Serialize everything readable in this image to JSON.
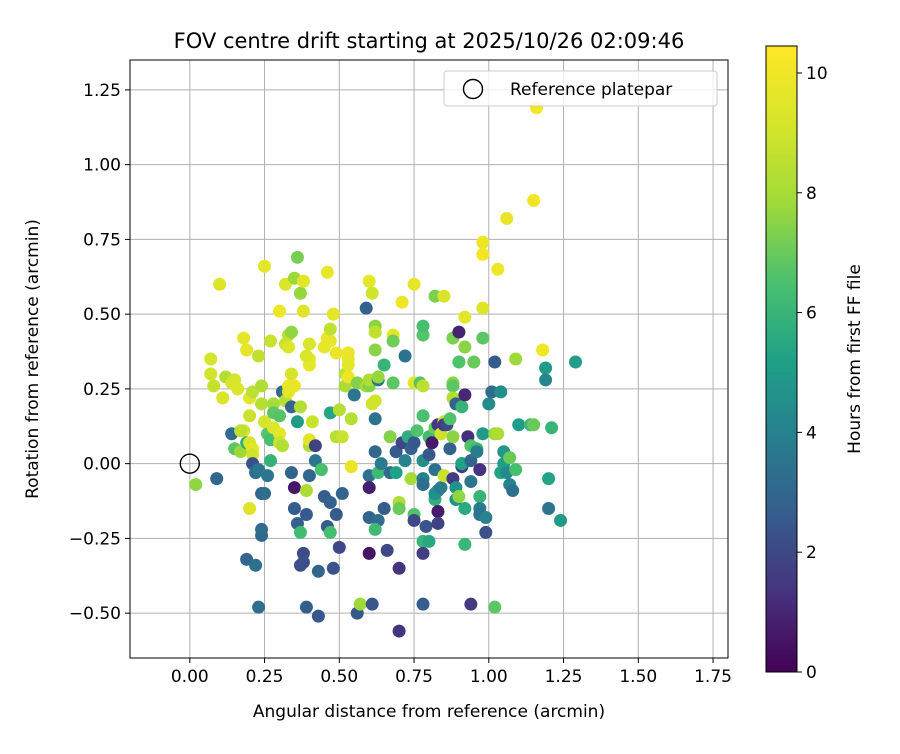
{
  "chart_data": {
    "type": "scatter",
    "title": "FOV centre drift starting at 2025/10/26 02:09:46",
    "xlabel": "Angular distance from reference (arcmin)",
    "ylabel": "Rotation from reference (arcmin)",
    "xlim": [
      -0.2,
      1.8
    ],
    "ylim": [
      -0.65,
      1.35
    ],
    "xticks": [
      0.0,
      0.25,
      0.5,
      0.75,
      1.0,
      1.25,
      1.5,
      1.75
    ],
    "xtick_labels": [
      "0.00",
      "0.25",
      "0.50",
      "0.75",
      "1.00",
      "1.25",
      "1.50",
      "1.75"
    ],
    "yticks": [
      -0.5,
      -0.25,
      0.0,
      0.25,
      0.5,
      0.75,
      1.0,
      1.25
    ],
    "ytick_labels": [
      "−0.50",
      "−0.25",
      "0.00",
      "0.25",
      "0.50",
      "0.75",
      "1.00",
      "1.25"
    ],
    "grid": true,
    "legend": {
      "position": "top-right",
      "entries": [
        "Reference platepar"
      ]
    },
    "reference_point": {
      "x": 0.0,
      "y": 0.0,
      "label": "Reference platepar"
    },
    "colorbar": {
      "label": "Hours from first FF file",
      "min": 0,
      "max": 10.45,
      "ticks": [
        0,
        2,
        4,
        6,
        8,
        10
      ],
      "tick_labels": [
        "0",
        "2",
        "4",
        "6",
        "8",
        "10"
      ],
      "colormap": "viridis"
    },
    "point_fields": [
      "x",
      "y",
      "hours"
    ],
    "points": [
      [
        0.02,
        -0.07,
        7.6
      ],
      [
        0.09,
        -0.05,
        3.0
      ],
      [
        0.12,
        0.29,
        8.3
      ],
      [
        0.1,
        0.6,
        9.4
      ],
      [
        0.07,
        0.35,
        9.1
      ],
      [
        0.07,
        0.3,
        9.0
      ],
      [
        0.08,
        0.26,
        8.7
      ],
      [
        0.11,
        0.22,
        9.3
      ],
      [
        0.14,
        0.27,
        9.2
      ],
      [
        0.15,
        0.28,
        9.1
      ],
      [
        0.16,
        0.25,
        9.3
      ],
      [
        0.14,
        0.1,
        3.2
      ],
      [
        0.15,
        0.05,
        6.8
      ],
      [
        0.17,
        0.04,
        7.8
      ],
      [
        0.18,
        0.11,
        9.0
      ],
      [
        0.19,
        0.07,
        5.8
      ],
      [
        0.17,
        0.11,
        8.6
      ],
      [
        0.19,
        0.38,
        9.6
      ],
      [
        0.18,
        0.42,
        9.6
      ],
      [
        0.2,
        0.22,
        9.5
      ],
      [
        0.21,
        0.24,
        8.5
      ],
      [
        0.2,
        0.16,
        8.8
      ],
      [
        0.2,
        0.07,
        9.2
      ],
      [
        0.21,
        0.05,
        9.6
      ],
      [
        0.21,
        0.03,
        9.0
      ],
      [
        0.21,
        0.0,
        2.3
      ],
      [
        0.22,
        -0.03,
        3.3
      ],
      [
        0.23,
        -0.02,
        3.6
      ],
      [
        0.2,
        -0.15,
        9.4
      ],
      [
        0.19,
        -0.32,
        3.0
      ],
      [
        0.22,
        -0.34,
        3.4
      ],
      [
        0.24,
        -0.24,
        3.1
      ],
      [
        0.24,
        -0.22,
        3.2
      ],
      [
        0.23,
        -0.48,
        3.3
      ],
      [
        0.24,
        -0.1,
        3.0
      ],
      [
        0.25,
        -0.1,
        3.3
      ],
      [
        0.26,
        -0.04,
        3.6
      ],
      [
        0.27,
        0.01,
        5.9
      ],
      [
        0.26,
        0.1,
        6.7
      ],
      [
        0.27,
        0.08,
        6.4
      ],
      [
        0.25,
        0.14,
        9.1
      ],
      [
        0.24,
        0.2,
        8.4
      ],
      [
        0.24,
        0.26,
        8.2
      ],
      [
        0.23,
        0.36,
        8.6
      ],
      [
        0.25,
        0.66,
        9.6
      ],
      [
        0.27,
        0.41,
        8.8
      ],
      [
        0.28,
        0.2,
        8.0
      ],
      [
        0.28,
        0.17,
        6.8
      ],
      [
        0.28,
        0.12,
        9.3
      ],
      [
        0.3,
        0.1,
        9.6
      ],
      [
        0.3,
        0.51,
        9.9
      ],
      [
        0.3,
        0.16,
        6.7
      ],
      [
        0.3,
        0.07,
        8.9
      ],
      [
        0.31,
        0.06,
        8.3
      ],
      [
        0.31,
        0.24,
        2.8
      ],
      [
        0.32,
        0.24,
        3.5
      ],
      [
        0.32,
        0.21,
        8.4
      ],
      [
        0.33,
        0.26,
        9.9
      ],
      [
        0.33,
        0.24,
        9.6
      ],
      [
        0.33,
        0.43,
        8.4
      ],
      [
        0.32,
        0.4,
        8.8
      ],
      [
        0.32,
        0.6,
        9.3
      ],
      [
        0.33,
        0.39,
        9.3
      ],
      [
        0.34,
        0.3,
        9.1
      ],
      [
        0.34,
        0.44,
        7.6
      ],
      [
        0.35,
        0.62,
        7.8
      ],
      [
        0.36,
        0.69,
        7.2
      ],
      [
        0.37,
        0.57,
        7.7
      ],
      [
        0.38,
        0.61,
        9.5
      ],
      [
        0.38,
        0.51,
        9.4
      ],
      [
        0.35,
        0.26,
        9.8
      ],
      [
        0.34,
        0.19,
        3.0
      ],
      [
        0.36,
        0.14,
        5.0
      ],
      [
        0.37,
        0.19,
        8.3
      ],
      [
        0.34,
        -0.03,
        2.9
      ],
      [
        0.35,
        -0.08,
        0.6
      ],
      [
        0.35,
        -0.15,
        2.6
      ],
      [
        0.36,
        -0.2,
        2.8
      ],
      [
        0.37,
        -0.23,
        6.3
      ],
      [
        0.37,
        -0.34,
        2.2
      ],
      [
        0.38,
        -0.3,
        2.1
      ],
      [
        0.38,
        -0.33,
        2.2
      ],
      [
        0.39,
        -0.17,
        2.6
      ],
      [
        0.39,
        -0.09,
        8.1
      ],
      [
        0.39,
        -0.48,
        2.7
      ],
      [
        0.4,
        -0.04,
        3.0
      ],
      [
        0.4,
        0.06,
        8.2
      ],
      [
        0.4,
        0.08,
        9.5
      ],
      [
        0.4,
        0.33,
        9.7
      ],
      [
        0.4,
        0.35,
        9.6
      ],
      [
        0.39,
        0.36,
        9.2
      ],
      [
        0.4,
        0.4,
        9.2
      ],
      [
        0.41,
        0.14,
        8.8
      ],
      [
        0.42,
        0.06,
        1.8
      ],
      [
        0.42,
        0.01,
        3.6
      ],
      [
        0.43,
        -0.36,
        3.0
      ],
      [
        0.43,
        -0.51,
        2.5
      ],
      [
        0.44,
        -0.02,
        6.5
      ],
      [
        0.45,
        -0.11,
        2.7
      ],
      [
        0.45,
        0.39,
        9.7
      ],
      [
        0.46,
        0.42,
        9.9
      ],
      [
        0.46,
        0.64,
        9.7
      ],
      [
        0.47,
        0.41,
        9.7
      ],
      [
        0.48,
        0.5,
        9.6
      ],
      [
        0.47,
        0.45,
        8.6
      ],
      [
        0.47,
        0.17,
        5.4
      ],
      [
        0.46,
        -0.21,
        2.6
      ],
      [
        0.47,
        -0.13,
        2.8
      ],
      [
        0.47,
        -0.23,
        6.4
      ],
      [
        0.48,
        -0.35,
        2.4
      ],
      [
        0.49,
        -0.17,
        2.6
      ],
      [
        0.49,
        0.09,
        8.4
      ],
      [
        0.49,
        0.37,
        9.8
      ],
      [
        0.5,
        0.18,
        8.3
      ],
      [
        0.51,
        0.09,
        8.8
      ],
      [
        0.5,
        -0.28,
        2.0
      ],
      [
        0.51,
        -0.1,
        2.9
      ],
      [
        0.52,
        0.26,
        8.1
      ],
      [
        0.52,
        0.3,
        8.5
      ],
      [
        0.53,
        0.29,
        9.9
      ],
      [
        0.54,
        0.15,
        8.4
      ],
      [
        0.53,
        0.35,
        9.6
      ],
      [
        0.53,
        0.33,
        9.6
      ],
      [
        0.53,
        0.37,
        9.8
      ],
      [
        0.54,
        -0.01,
        9.8
      ],
      [
        0.55,
        0.23,
        3.6
      ],
      [
        0.56,
        0.27,
        7.4
      ],
      [
        0.56,
        -0.5,
        2.5
      ],
      [
        0.57,
        -0.47,
        7.8
      ],
      [
        0.59,
        0.52,
        2.8
      ],
      [
        0.59,
        0.26,
        8.0
      ],
      [
        0.6,
        0.61,
        9.6
      ],
      [
        0.61,
        0.57,
        9.0
      ],
      [
        0.6,
        0.26,
        7.4
      ],
      [
        0.6,
        0.28,
        8.2
      ],
      [
        0.6,
        -0.04,
        3.4
      ],
      [
        0.6,
        -0.08,
        0.8
      ],
      [
        0.6,
        -0.18,
        2.9
      ],
      [
        0.6,
        -0.3,
        0.5
      ],
      [
        0.61,
        -0.47,
        2.4
      ],
      [
        0.62,
        0.46,
        7.5
      ],
      [
        0.62,
        0.44,
        8.6
      ],
      [
        0.62,
        0.38,
        7.5
      ],
      [
        0.63,
        0.28,
        3.6
      ],
      [
        0.63,
        0.29,
        7.7
      ],
      [
        0.61,
        0.2,
        9.0
      ],
      [
        0.62,
        0.21,
        9.0
      ],
      [
        0.62,
        0.15,
        3.5
      ],
      [
        0.62,
        0.04,
        3.1
      ],
      [
        0.63,
        -0.03,
        6.2
      ],
      [
        0.63,
        -0.19,
        3.2
      ],
      [
        0.62,
        -0.22,
        6.2
      ],
      [
        0.64,
        0.0,
        3.8
      ],
      [
        0.65,
        -0.15,
        2.6
      ],
      [
        0.65,
        0.33,
        6.0
      ],
      [
        0.66,
        -0.29,
        2.0
      ],
      [
        0.67,
        -0.03,
        3.2
      ],
      [
        0.67,
        0.09,
        7.4
      ],
      [
        0.68,
        0.43,
        9.5
      ],
      [
        0.68,
        0.41,
        7.1
      ],
      [
        0.68,
        0.27,
        6.8
      ],
      [
        0.69,
        0.04,
        2.6
      ],
      [
        0.69,
        -0.03,
        5.2
      ],
      [
        0.7,
        -0.13,
        8.2
      ],
      [
        0.7,
        -0.15,
        7.0
      ],
      [
        0.7,
        -0.35,
        1.4
      ],
      [
        0.7,
        -0.56,
        1.4
      ],
      [
        0.71,
        0.54,
        9.9
      ],
      [
        0.71,
        0.07,
        1.9
      ],
      [
        0.72,
        0.36,
        3.5
      ],
      [
        0.72,
        0.01,
        4.0
      ],
      [
        0.73,
        0.09,
        5.7
      ],
      [
        0.74,
        0.05,
        2.8
      ],
      [
        0.74,
        -0.05,
        8.0
      ],
      [
        0.75,
        -0.17,
        6.6
      ],
      [
        0.75,
        -0.19,
        2.0
      ],
      [
        0.75,
        0.6,
        9.7
      ],
      [
        0.75,
        0.27,
        9.5
      ],
      [
        0.75,
        0.07,
        2.5
      ],
      [
        0.76,
        0.11,
        6.6
      ],
      [
        0.77,
        0.27,
        6.7
      ],
      [
        0.78,
        0.16,
        6.5
      ],
      [
        0.78,
        0.43,
        6.7
      ],
      [
        0.78,
        0.46,
        6.4
      ],
      [
        0.78,
        0.26,
        8.5
      ],
      [
        0.78,
        0.01,
        4.5
      ],
      [
        0.78,
        -0.05,
        4.0
      ],
      [
        0.78,
        -0.07,
        3.3
      ],
      [
        0.78,
        -0.26,
        6.0
      ],
      [
        0.78,
        -0.47,
        2.6
      ],
      [
        0.78,
        -0.3,
        1.7
      ],
      [
        0.79,
        -0.21,
        2.4
      ],
      [
        0.8,
        -0.26,
        5.5
      ],
      [
        0.8,
        0.09,
        6.3
      ],
      [
        0.8,
        0.03,
        2.5
      ],
      [
        0.81,
        0.07,
        0.7
      ],
      [
        0.82,
        0.12,
        7.0
      ],
      [
        0.82,
        -0.02,
        3.4
      ],
      [
        0.82,
        -0.12,
        5.8
      ],
      [
        0.83,
        -0.09,
        3.1
      ],
      [
        0.82,
        -0.1,
        4.5
      ],
      [
        0.83,
        -0.16,
        0.7
      ],
      [
        0.83,
        -0.2,
        1.8
      ],
      [
        0.82,
        0.56,
        7.3
      ],
      [
        0.83,
        0.13,
        1.5
      ],
      [
        0.84,
        0.1,
        8.9
      ],
      [
        0.84,
        -0.08,
        3.8
      ],
      [
        0.85,
        0.14,
        8.9
      ],
      [
        0.85,
        0.13,
        1.6
      ],
      [
        0.85,
        0.56,
        9.2
      ],
      [
        0.85,
        -0.04,
        8.8
      ],
      [
        0.86,
        0.13,
        2.0
      ],
      [
        0.87,
        0.15,
        6.6
      ],
      [
        0.87,
        0.05,
        2.8
      ],
      [
        0.88,
        0.09,
        7.5
      ],
      [
        0.88,
        -0.05,
        1.6
      ],
      [
        0.88,
        0.27,
        7.5
      ],
      [
        0.88,
        0.42,
        7.3
      ],
      [
        0.88,
        0.26,
        6.8
      ],
      [
        0.88,
        0.22,
        8.3
      ],
      [
        0.89,
        0.2,
        2.8
      ],
      [
        0.89,
        -0.08,
        4.7
      ],
      [
        0.89,
        -0.12,
        4.7
      ],
      [
        0.9,
        -0.11,
        7.6
      ],
      [
        0.9,
        0.44,
        0.9
      ],
      [
        0.9,
        0.34,
        6.6
      ],
      [
        0.91,
        0.19,
        6.0
      ],
      [
        0.91,
        0.0,
        3.5
      ],
      [
        0.91,
        -0.01,
        1.6
      ],
      [
        0.91,
        0.0,
        5.3
      ],
      [
        0.92,
        0.23,
        1.0
      ],
      [
        0.92,
        0.49,
        9.5
      ],
      [
        0.92,
        0.39,
        7.5
      ],
      [
        0.92,
        -0.15,
        5.6
      ],
      [
        0.92,
        -0.27,
        6.1
      ],
      [
        0.93,
        0.09,
        1.2
      ],
      [
        0.94,
        -0.47,
        1.6
      ],
      [
        0.94,
        0.01,
        3.0
      ],
      [
        0.94,
        -0.06,
        3.6
      ],
      [
        0.94,
        0.06,
        6.6
      ],
      [
        0.95,
        0.34,
        7.0
      ],
      [
        0.96,
        0.05,
        6.1
      ],
      [
        0.96,
        0.04,
        3.8
      ],
      [
        0.97,
        -0.02,
        1.3
      ],
      [
        0.97,
        -0.11,
        6.0
      ],
      [
        0.97,
        -0.15,
        3.8
      ],
      [
        0.97,
        -0.17,
        3.5
      ],
      [
        0.98,
        0.42,
        6.8
      ],
      [
        0.98,
        0.52,
        9.4
      ],
      [
        0.98,
        0.74,
        9.9
      ],
      [
        0.98,
        0.7,
        10.1
      ],
      [
        0.98,
        0.1,
        5.0
      ],
      [
        0.99,
        -0.23,
        2.2
      ],
      [
        0.99,
        -0.18,
        4.0
      ],
      [
        1.0,
        0.2,
        4.4
      ],
      [
        1.01,
        0.24,
        3.2
      ],
      [
        1.02,
        0.1,
        7.8
      ],
      [
        1.02,
        0.34,
        2.6
      ],
      [
        1.02,
        -0.48,
        6.8
      ],
      [
        1.03,
        0.1,
        8.2
      ],
      [
        1.03,
        0.65,
        9.9
      ],
      [
        1.04,
        0.24,
        4.5
      ],
      [
        1.04,
        -0.03,
        5.3
      ],
      [
        1.05,
        0.04,
        4.8
      ],
      [
        1.05,
        0.0,
        5.1
      ],
      [
        1.06,
        0.82,
        9.8
      ],
      [
        1.06,
        -0.03,
        4.3
      ],
      [
        1.07,
        0.02,
        7.0
      ],
      [
        1.07,
        -0.07,
        4.0
      ],
      [
        1.08,
        -0.09,
        3.4
      ],
      [
        1.09,
        -0.02,
        6.4
      ],
      [
        1.09,
        0.35,
        7.8
      ],
      [
        1.1,
        0.13,
        5.1
      ],
      [
        1.14,
        0.13,
        6.2
      ],
      [
        1.15,
        0.13,
        7.0
      ],
      [
        1.15,
        0.88,
        10.0
      ],
      [
        1.16,
        1.19,
        10.1
      ],
      [
        1.18,
        0.38,
        10.0
      ],
      [
        1.19,
        0.32,
        5.0
      ],
      [
        1.19,
        0.28,
        4.1
      ],
      [
        1.2,
        -0.15,
        3.6
      ],
      [
        1.2,
        -0.05,
        5.3
      ],
      [
        1.21,
        0.12,
        6.0
      ],
      [
        1.24,
        -0.19,
        5.0
      ],
      [
        1.29,
        0.34,
        5.1
      ]
    ]
  }
}
